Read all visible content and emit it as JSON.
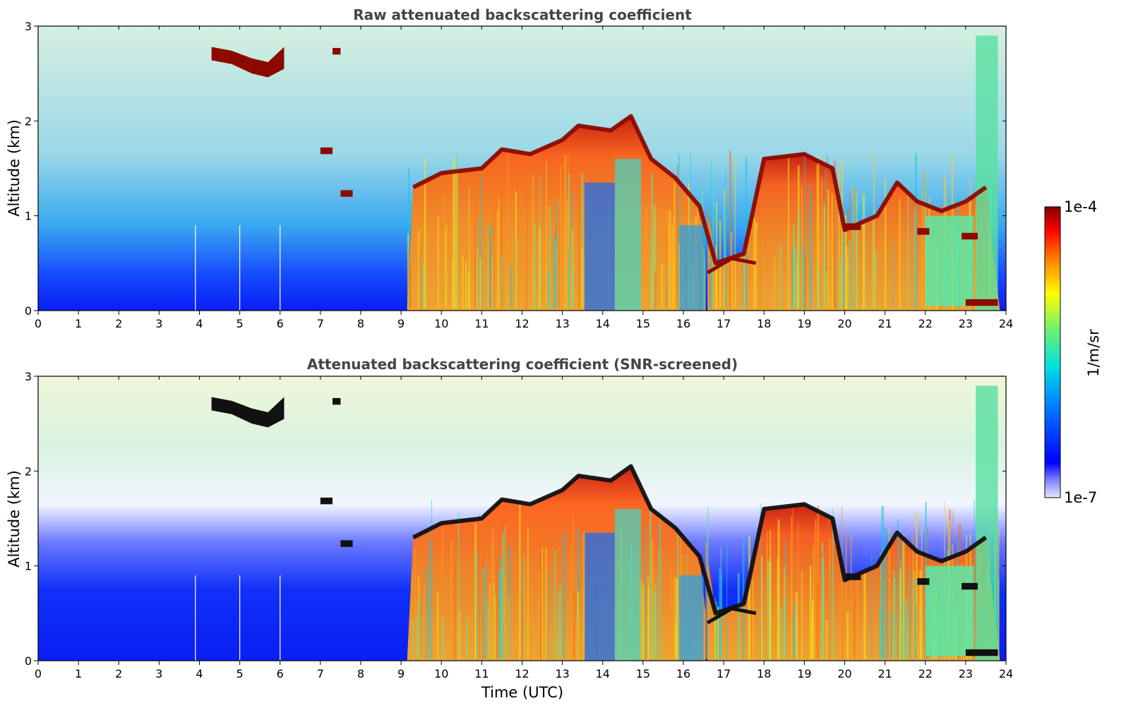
{
  "chart_data": [
    {
      "type": "heatmap",
      "title": "Raw attenuated backscattering coefficient",
      "xlabel": "",
      "ylabel": "Altitude (km)",
      "xlim": [
        0,
        24
      ],
      "ylim": [
        0,
        3
      ],
      "xticks": [
        "0",
        "1",
        "2",
        "3",
        "4",
        "5",
        "6",
        "7",
        "8",
        "9",
        "10",
        "11",
        "12",
        "13",
        "14",
        "15",
        "16",
        "17",
        "18",
        "19",
        "20",
        "21",
        "22",
        "23",
        "24"
      ],
      "yticks": [
        "0",
        "1",
        "2",
        "3"
      ],
      "layer_trace_km": [
        [
          4.3,
          2.7
        ],
        [
          4.8,
          2.62
        ],
        [
          5.4,
          2.55
        ],
        [
          5.8,
          2.58
        ],
        [
          6.1,
          2.65
        ],
        [
          9.3,
          1.3
        ],
        [
          10.0,
          1.45
        ],
        [
          11.0,
          1.5
        ],
        [
          11.5,
          1.7
        ],
        [
          12.2,
          1.65
        ],
        [
          13.0,
          1.8
        ],
        [
          13.4,
          1.95
        ],
        [
          14.2,
          1.9
        ],
        [
          14.7,
          2.05
        ],
        [
          15.2,
          1.6
        ],
        [
          15.8,
          1.4
        ],
        [
          16.4,
          1.1
        ],
        [
          16.8,
          0.5
        ],
        [
          17.5,
          0.6
        ],
        [
          18.0,
          1.6
        ],
        [
          19.0,
          1.65
        ],
        [
          19.7,
          1.5
        ],
        [
          20.0,
          0.85
        ],
        [
          20.8,
          1.0
        ],
        [
          21.3,
          1.35
        ],
        [
          21.8,
          1.15
        ],
        [
          22.4,
          1.05
        ],
        [
          23.0,
          1.15
        ],
        [
          23.5,
          1.3
        ]
      ]
    },
    {
      "type": "heatmap",
      "title": "Attenuated backscattering coefficient (SNR-screened)",
      "xlabel": "Time (UTC)",
      "ylabel": "Altitude (km)",
      "xlim": [
        0,
        24
      ],
      "ylim": [
        0,
        3
      ],
      "xticks": [
        "0",
        "1",
        "2",
        "3",
        "4",
        "5",
        "6",
        "7",
        "8",
        "9",
        "10",
        "11",
        "12",
        "13",
        "14",
        "15",
        "16",
        "17",
        "18",
        "19",
        "20",
        "21",
        "22",
        "23",
        "24"
      ],
      "yticks": [
        "0",
        "1",
        "2",
        "3"
      ]
    }
  ],
  "colorbar": {
    "label": "1/m/sr",
    "max_label": "1e-4",
    "min_label": "1e-7",
    "scale": "log",
    "colormap": "jet"
  },
  "colors": {
    "title_gray": "#444444",
    "low_blue": "#0a2cf0",
    "mid_green": "#50e8a0",
    "high_orange": "#f08c14",
    "max_darkred": "#8c0000"
  }
}
